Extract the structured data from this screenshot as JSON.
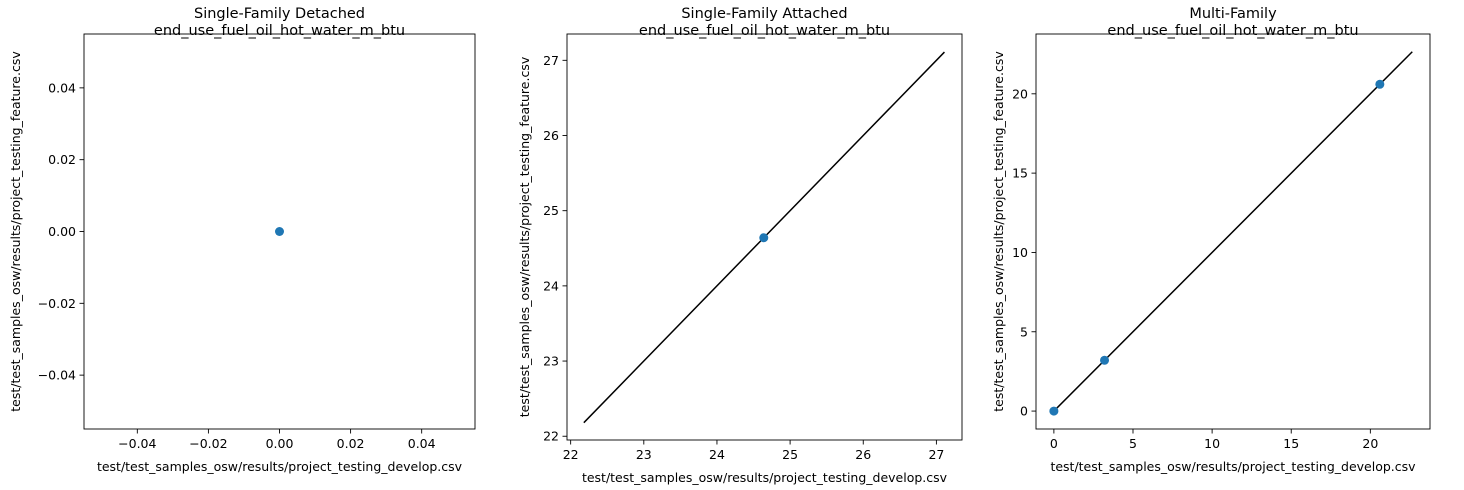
{
  "chart_data": [
    {
      "type": "scatter",
      "title": "Single-Family Detached",
      "subtitle": "end_use_fuel_oil_hot_water_m_btu",
      "xlabel": "test/test_samples_osw/results/project_testing_develop.csv",
      "ylabel": "test/test_samples_osw/results/project_testing_feature.csv",
      "xlim": [
        -0.055,
        0.055
      ],
      "ylim": [
        -0.055,
        0.055
      ],
      "xticks": [
        -0.04,
        -0.02,
        0.0,
        0.02,
        0.04
      ],
      "xtick_labels": [
        "−0.04",
        "−0.02",
        "0.00",
        "0.02",
        "0.04"
      ],
      "yticks": [
        -0.04,
        -0.02,
        0.0,
        0.02,
        0.04
      ],
      "ytick_labels": [
        "−0.04",
        "−0.02",
        "0.00",
        "0.02",
        "0.04"
      ],
      "points": [
        {
          "x": 0.0,
          "y": 0.0
        }
      ],
      "identity_line": null,
      "grid": false
    },
    {
      "type": "scatter",
      "title": "Single-Family Attached",
      "subtitle": "end_use_fuel_oil_hot_water_m_btu",
      "xlabel": "test/test_samples_osw/results/project_testing_develop.csv",
      "ylabel": "test/test_samples_osw/results/project_testing_feature.csv",
      "xlim": [
        21.95,
        27.35
      ],
      "ylim": [
        21.95,
        27.35
      ],
      "xticks": [
        22,
        23,
        24,
        25,
        26,
        27
      ],
      "xtick_labels": [
        "22",
        "23",
        "24",
        "25",
        "26",
        "27"
      ],
      "yticks": [
        22,
        23,
        24,
        25,
        26,
        27
      ],
      "ytick_labels": [
        "22",
        "23",
        "24",
        "25",
        "26",
        "27"
      ],
      "points": [
        {
          "x": 24.64,
          "y": 24.64
        }
      ],
      "identity_line": [
        22.18,
        27.11
      ],
      "grid": false
    },
    {
      "type": "scatter",
      "title": "Multi-Family",
      "subtitle": "end_use_fuel_oil_hot_water_m_btu",
      "xlabel": "test/test_samples_osw/results/project_testing_develop.csv",
      "ylabel": "test/test_samples_osw/results/project_testing_feature.csv",
      "xlim": [
        -1.13,
        23.77
      ],
      "ylim": [
        -1.13,
        23.77
      ],
      "xticks": [
        0,
        5,
        10,
        15,
        20
      ],
      "xtick_labels": [
        "0",
        "5",
        "10",
        "15",
        "20"
      ],
      "yticks": [
        0,
        5,
        10,
        15,
        20
      ],
      "ytick_labels": [
        "0",
        "5",
        "10",
        "15",
        "20"
      ],
      "points": [
        {
          "x": 0.0,
          "y": 0.0
        },
        {
          "x": 3.2,
          "y": 3.2
        },
        {
          "x": 20.6,
          "y": 20.6
        }
      ],
      "identity_line": [
        0.0,
        22.65
      ],
      "grid": false
    }
  ],
  "colors": {
    "marker": "#1f77b4",
    "line": "#000000",
    "axes": "#000000",
    "background": "#ffffff"
  }
}
